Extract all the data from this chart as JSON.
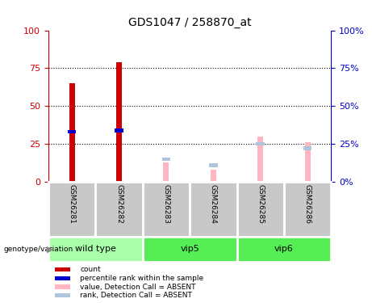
{
  "title": "GDS1047 / 258870_at",
  "samples": [
    "GSM26281",
    "GSM26282",
    "GSM26283",
    "GSM26284",
    "GSM26285",
    "GSM26286"
  ],
  "count_values": [
    65,
    79,
    0,
    0,
    0,
    0
  ],
  "percentile_values": [
    33,
    34,
    0,
    0,
    0,
    0
  ],
  "absent_value": [
    0,
    0,
    13,
    8,
    30,
    26
  ],
  "absent_rank": [
    0,
    0,
    15,
    11,
    25,
    22
  ],
  "ylim": [
    0,
    100
  ],
  "yticks": [
    0,
    25,
    50,
    75,
    100
  ],
  "count_color": "#CC0000",
  "percentile_color": "#0000CC",
  "absent_value_color": "#FFB6C1",
  "absent_rank_color": "#B0C4DE",
  "left_axis_color": "#CC0000",
  "right_axis_color": "#0000CC",
  "bg_label_row": "#C8C8C8",
  "bg_group_wild": "#AAFFAA",
  "bg_group_vip": "#55EE55",
  "group_info": [
    {
      "name": "wild type",
      "start": 0,
      "end": 1,
      "type": "wild"
    },
    {
      "name": "vip5",
      "start": 2,
      "end": 3,
      "type": "vip"
    },
    {
      "name": "vip6",
      "start": 4,
      "end": 5,
      "type": "vip"
    }
  ],
  "legend_items": [
    {
      "color": "#CC0000",
      "label": "count"
    },
    {
      "color": "#0000CC",
      "label": "percentile rank within the sample"
    },
    {
      "color": "#FFB6C1",
      "label": "value, Detection Call = ABSENT"
    },
    {
      "color": "#B0C4DE",
      "label": "rank, Detection Call = ABSENT"
    }
  ]
}
